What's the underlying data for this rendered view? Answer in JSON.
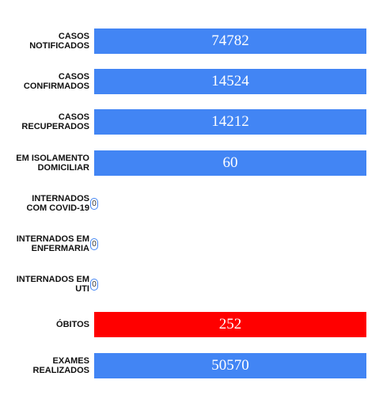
{
  "rows": [
    {
      "label": "CASOS\nNOTIFICADOS",
      "value": "74782",
      "color": "#4285f4"
    },
    {
      "label": "CASOS\nCONFIRMADOS",
      "value": "14524",
      "color": "#4285f4"
    },
    {
      "label": "CASOS\nRECUPERADOS",
      "value": "14212",
      "color": "#4285f4"
    },
    {
      "label": "EM ISOLAMENTO\nDOMICILIAR",
      "value": "60",
      "color": "#4285f4"
    },
    {
      "label": "INTERNADOS\nCOM COVID-19",
      "value": "0",
      "color": "#4285f4"
    },
    {
      "label": "INTERNADOS EM\nENFERMARIA",
      "value": "0",
      "color": "#4285f4"
    },
    {
      "label": "INTERNADOS EM\nUTI",
      "value": "0",
      "color": "#4285f4"
    },
    {
      "label": "ÓBITOS",
      "value": "252",
      "color": "#ff0000"
    },
    {
      "label": "EXAMES\nREALIZADOS",
      "value": "50570",
      "color": "#4285f4"
    }
  ]
}
